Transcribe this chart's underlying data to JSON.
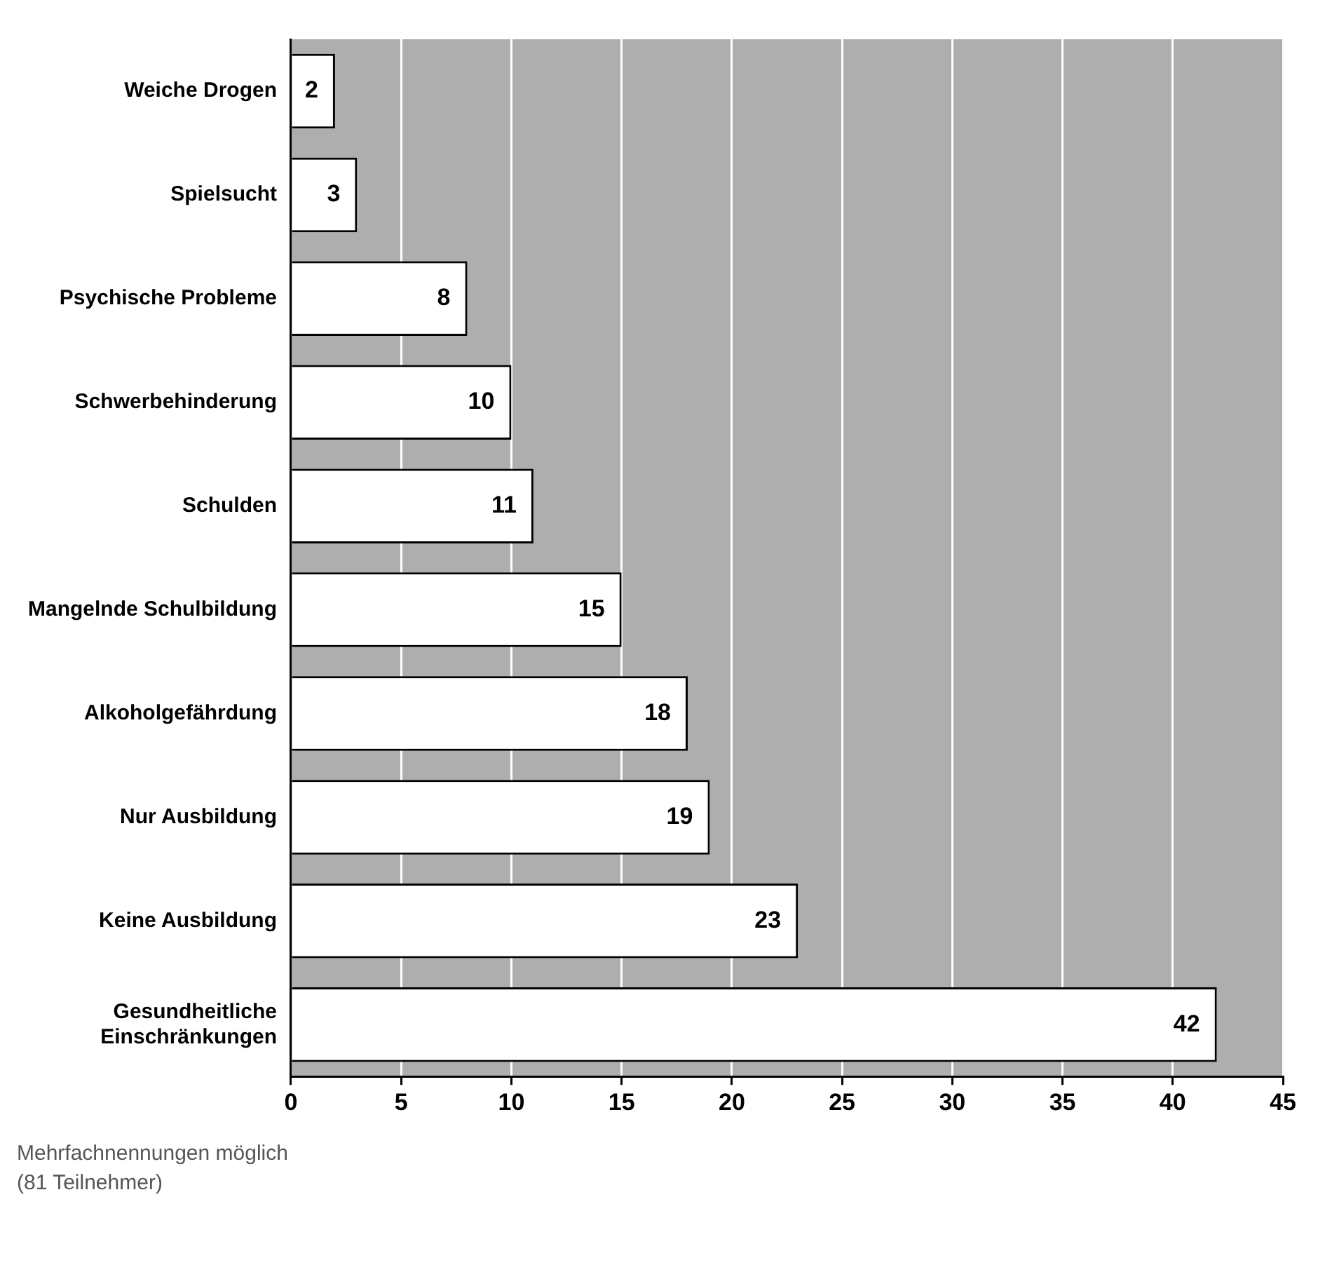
{
  "chart_data": {
    "type": "bar",
    "orientation": "horizontal",
    "categories": [
      "Weiche Drogen",
      "Spielsucht",
      "Psychische Probleme",
      "Schwerbehinderung",
      "Schulden",
      "Mangelnde Schulbildung",
      "Alkoholgefährdung",
      "Nur Ausbildung",
      "Keine Ausbildung",
      "Gesundheitliche Einschränkungen"
    ],
    "values": [
      2,
      3,
      8,
      10,
      11,
      15,
      18,
      19,
      23,
      42
    ],
    "color": "#ffffff",
    "xlim": [
      0,
      45
    ],
    "xticks": [
      0,
      5,
      10,
      15,
      20,
      25,
      30,
      35,
      40,
      45
    ],
    "grid": "x",
    "legend": false,
    "data_labels": true,
    "annotations": [
      "Mehrfachnennungen möglich",
      "(81 Teilnehmer)"
    ]
  }
}
